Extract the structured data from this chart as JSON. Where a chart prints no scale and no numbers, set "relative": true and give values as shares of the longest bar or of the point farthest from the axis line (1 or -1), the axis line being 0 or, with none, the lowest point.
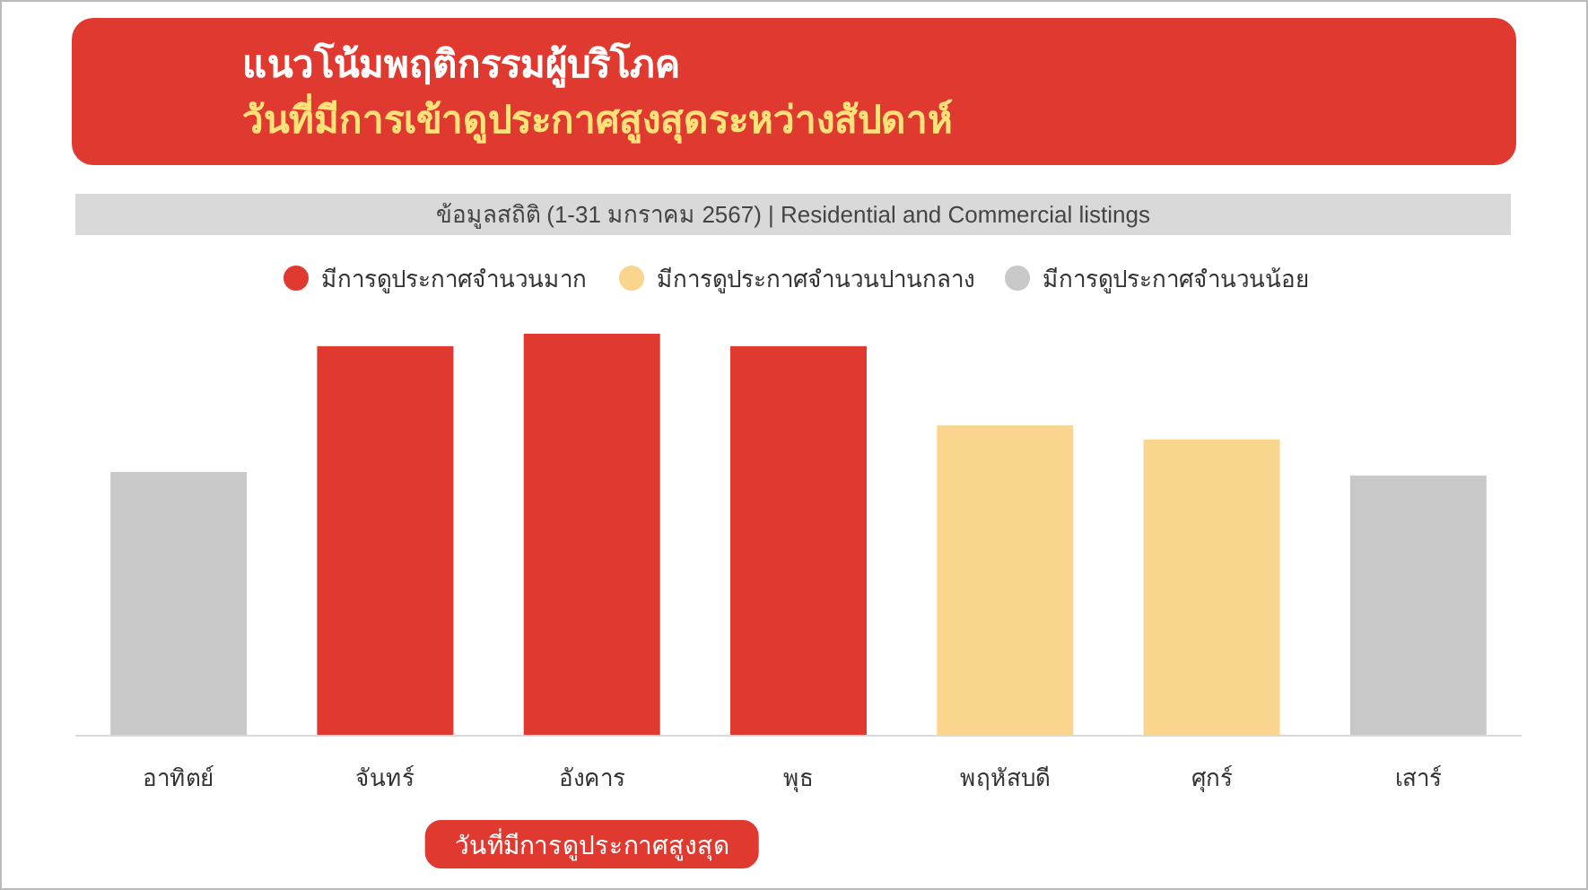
{
  "chart_data": {
    "type": "bar",
    "title": "แนวโน้มพฤติกรรมผู้บริโภค",
    "subtitle": "วันที่มีการเข้าดูประกาศสูงสุดระหว่างสัปดาห์",
    "categories": [
      "อาทิตย์",
      "จันทร์",
      "อังคาร",
      "พุธ",
      "พฤหัสบดี",
      "ศุกร์",
      "เสาร์"
    ],
    "relative": true,
    "stacked": true,
    "legend": "top",
    "series": [
      {
        "name": "มีการดูประกาศจำนวนมาก",
        "color": "#e03a30",
        "values": [
          null,
          0.969,
          1,
          0.969,
          null,
          null,
          null
        ]
      },
      {
        "name": "มีการดูประกาศจำนวนปานกลาง",
        "color": "#fad58e",
        "values": [
          null,
          null,
          null,
          null,
          0.772,
          0.737,
          null
        ]
      },
      {
        "name": "มีการดูประกาศจำนวนน้อย",
        "color": "#c8c8c8",
        "values": [
          0.656,
          null,
          null,
          null,
          null,
          null,
          0.647
        ]
      }
    ],
    "annotations": [
      "ข้อมูลสถิติ (1-31 มกราคม 2567) | Residential and Commercial listings",
      "วันที่มีการดูประกาศสูงสุด"
    ]
  }
}
